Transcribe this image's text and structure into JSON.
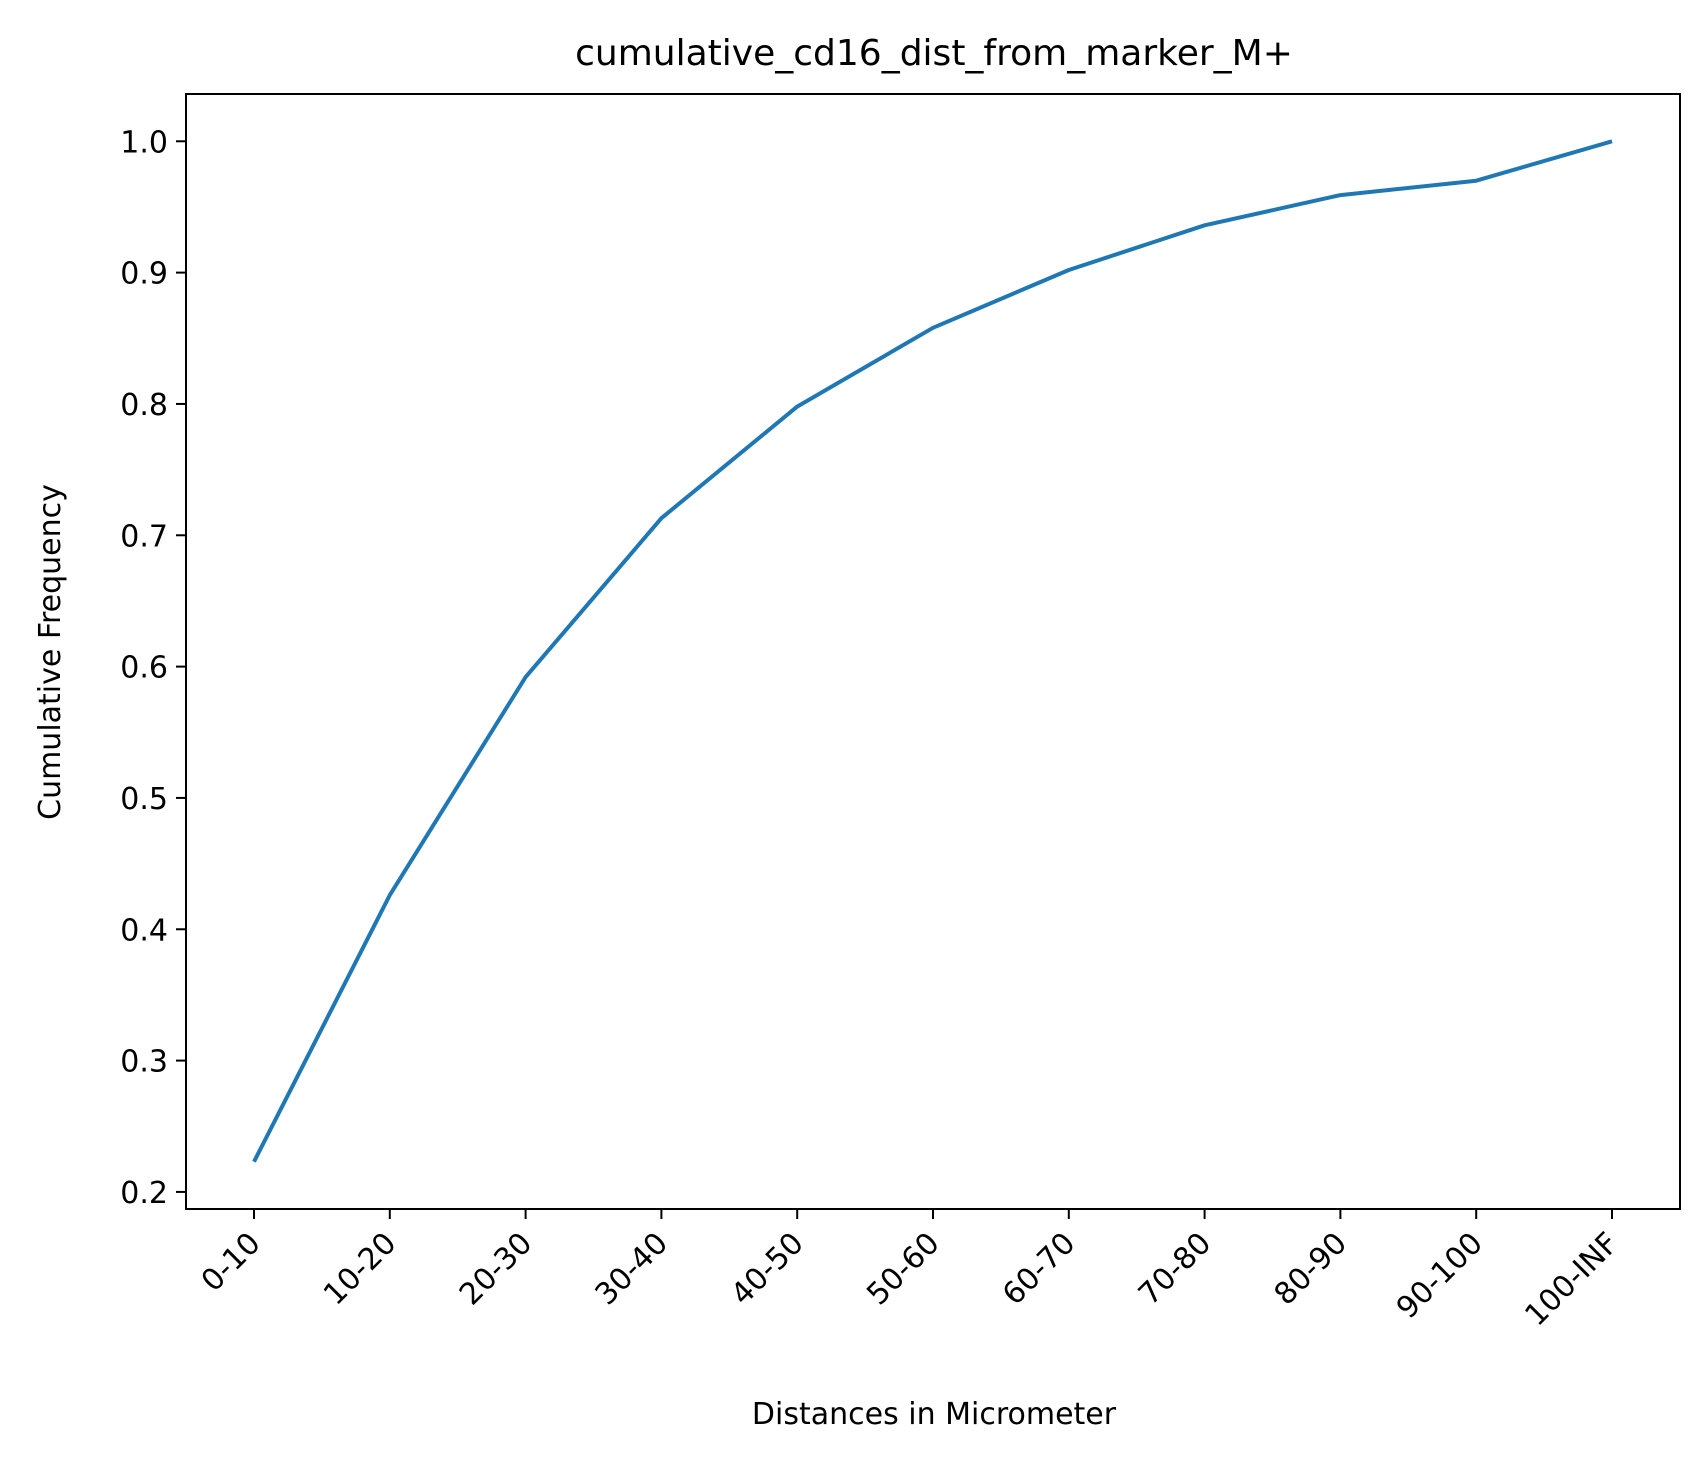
{
  "chart_data": {
    "type": "line",
    "title": "cumulative_cd16_dist_from_marker_M+",
    "xlabel": "Distances in Micrometer",
    "ylabel": "Cumulative Frequency",
    "categories": [
      "0-10",
      "10-20",
      "20-30",
      "30-40",
      "40-50",
      "50-60",
      "60-70",
      "70-80",
      "80-90",
      "90-100",
      "100-INF"
    ],
    "series": [
      {
        "values": [
          0.223,
          0.426,
          0.592,
          0.713,
          0.798,
          0.858,
          0.902,
          0.936,
          0.959,
          0.97,
          1.0
        ]
      }
    ],
    "ylim": [
      0.187,
      1.036
    ],
    "yticks": [
      "0.2",
      "0.3",
      "0.4",
      "0.5",
      "0.6",
      "0.7",
      "0.8",
      "0.9",
      "1.0"
    ],
    "grid": false,
    "line_color": "#1f77b4"
  }
}
